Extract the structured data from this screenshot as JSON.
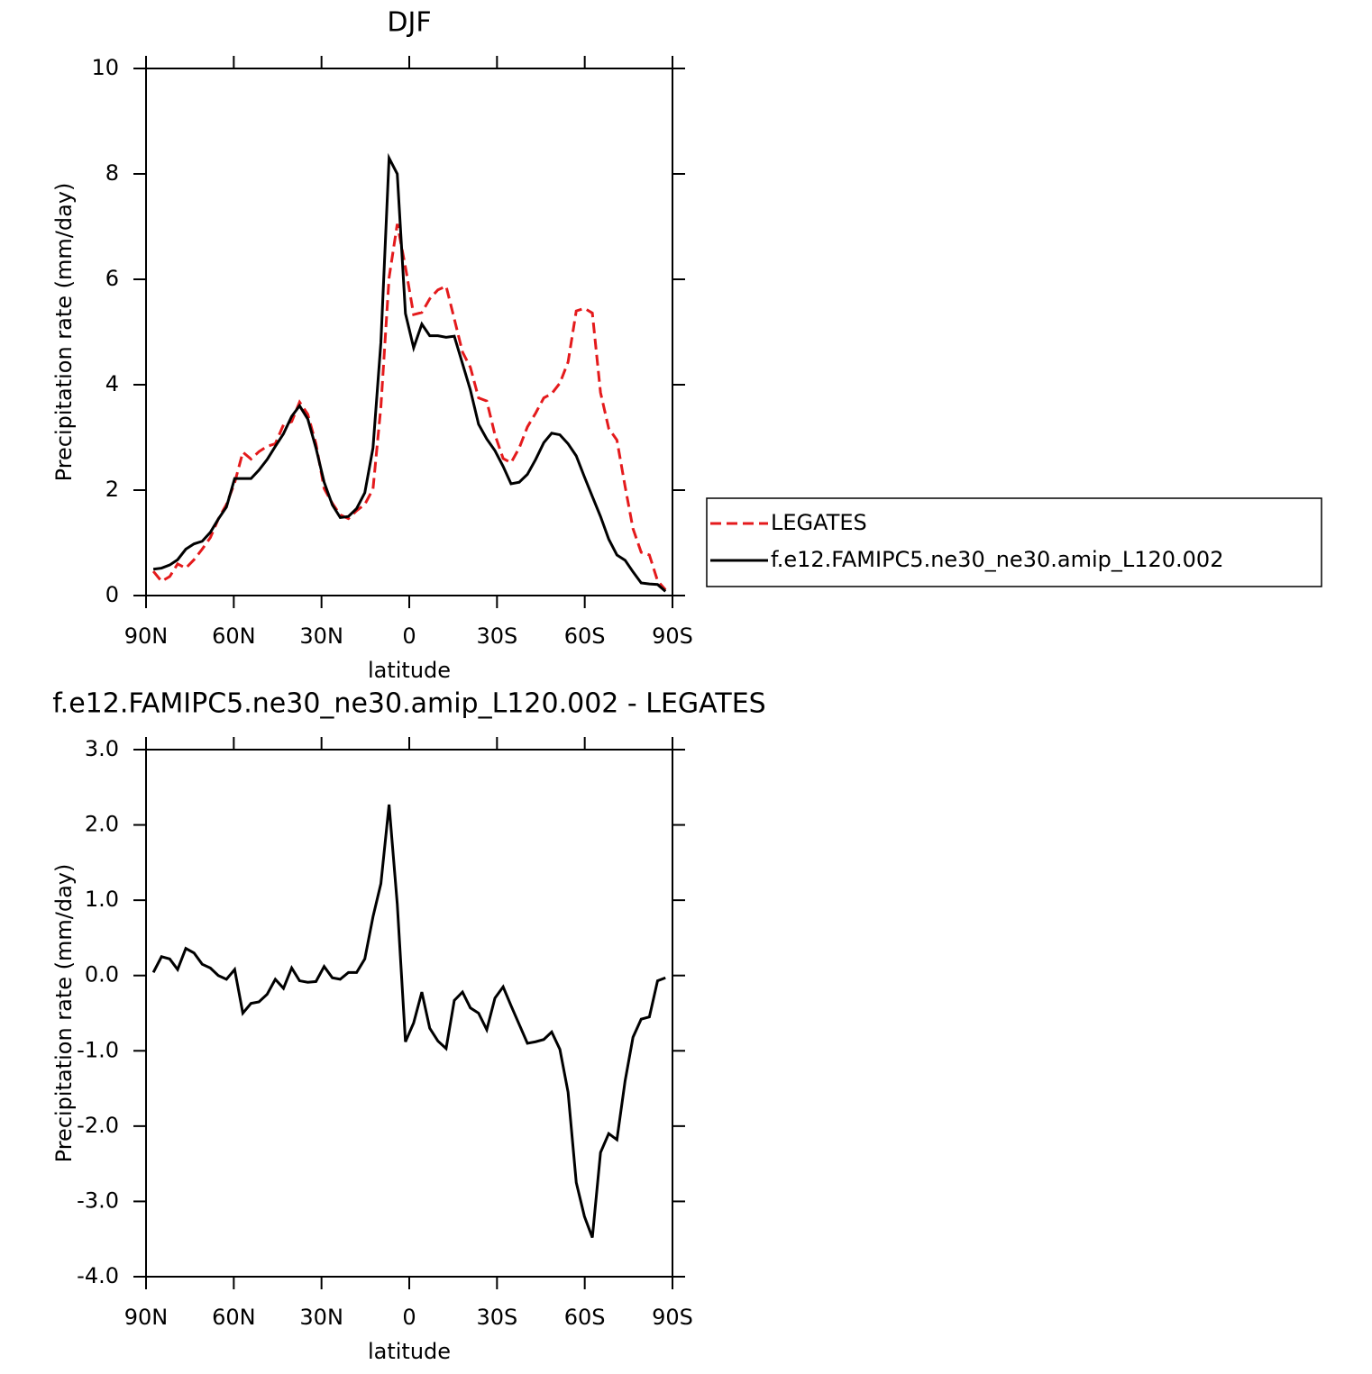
{
  "chart_data": [
    {
      "type": "line",
      "title": "DJF",
      "x_label": "latitude",
      "y_label": "Precipitation rate (mm/day)",
      "x": [
        87.5,
        84.7,
        81.9,
        79.2,
        76.4,
        73.6,
        70.8,
        68.0,
        65.3,
        62.5,
        59.7,
        56.9,
        54.1,
        51.4,
        48.6,
        45.8,
        43.0,
        40.2,
        37.5,
        34.7,
        31.9,
        29.1,
        26.3,
        23.6,
        20.8,
        18.0,
        15.2,
        12.4,
        9.7,
        6.9,
        4.1,
        1.3,
        -1.5,
        -4.3,
        -7.0,
        -9.8,
        -12.6,
        -15.4,
        -18.2,
        -20.9,
        -23.7,
        -26.5,
        -29.3,
        -32.1,
        -34.8,
        -37.6,
        -40.4,
        -43.2,
        -46.0,
        -48.7,
        -51.5,
        -54.3,
        -57.1,
        -59.9,
        -62.6,
        -65.4,
        -68.2,
        -71.0,
        -73.8,
        -76.5,
        -79.3,
        -82.1,
        -84.9,
        -87.6
      ],
      "series": [
        {
          "name": "LEGATES",
          "color": "#e41a1c",
          "dashed": true,
          "values": [
            0.46,
            0.27,
            0.36,
            0.6,
            0.52,
            0.68,
            0.88,
            1.1,
            1.45,
            1.73,
            2.14,
            2.72,
            2.59,
            2.73,
            2.83,
            2.88,
            3.24,
            3.3,
            3.67,
            3.44,
            2.88,
            2.03,
            1.75,
            1.53,
            1.46,
            1.61,
            1.73,
            2.02,
            3.58,
            6.03,
            7.05,
            6.23,
            5.33,
            5.37,
            5.63,
            5.8,
            5.87,
            5.25,
            4.62,
            4.33,
            3.75,
            3.69,
            3.05,
            2.6,
            2.52,
            2.8,
            3.2,
            3.46,
            3.75,
            3.83,
            4.03,
            4.43,
            5.4,
            5.45,
            5.36,
            3.85,
            3.17,
            2.95,
            2.07,
            1.27,
            0.82,
            0.77,
            0.28,
            0.11
          ]
        },
        {
          "name": "f.e12.FAMIPC5.ne30_ne30.amip_L120.002",
          "color": "#000000",
          "dashed": false,
          "values": [
            0.5,
            0.52,
            0.58,
            0.68,
            0.88,
            0.98,
            1.03,
            1.2,
            1.45,
            1.68,
            2.22,
            2.22,
            2.22,
            2.38,
            2.58,
            2.83,
            3.07,
            3.4,
            3.6,
            3.35,
            2.8,
            2.15,
            1.72,
            1.48,
            1.5,
            1.65,
            1.95,
            2.8,
            4.8,
            8.3,
            8.0,
            5.35,
            4.7,
            5.15,
            4.93,
            4.93,
            4.9,
            4.92,
            4.4,
            3.9,
            3.25,
            2.97,
            2.75,
            2.45,
            2.12,
            2.15,
            2.3,
            2.58,
            2.9,
            3.08,
            3.05,
            2.88,
            2.65,
            2.25,
            1.88,
            1.5,
            1.07,
            0.77,
            0.67,
            0.45,
            0.24,
            0.22,
            0.21,
            0.08
          ]
        }
      ],
      "xlim": [
        90,
        -90
      ],
      "xticks": [
        {
          "value": 90,
          "label": "90N"
        },
        {
          "value": 60,
          "label": "60N"
        },
        {
          "value": 30,
          "label": "30N"
        },
        0,
        {
          "value": -30,
          "label": "30S"
        },
        {
          "value": -60,
          "label": "60S"
        },
        {
          "value": -90,
          "label": "90S"
        }
      ],
      "ylim": [
        0,
        10
      ],
      "yticks": [
        0,
        2,
        4,
        6,
        8,
        10
      ],
      "legend": "right"
    },
    {
      "type": "line",
      "title": "f.e12.FAMIPC5.ne30_ne30.amip_L120.002 - LEGATES",
      "x_label": "latitude",
      "y_label": "Precipitation rate (mm/day)",
      "x": [
        87.5,
        84.7,
        81.9,
        79.2,
        76.4,
        73.6,
        70.8,
        68.0,
        65.3,
        62.5,
        59.7,
        56.9,
        54.1,
        51.4,
        48.6,
        45.8,
        43.0,
        40.2,
        37.5,
        34.7,
        31.9,
        29.1,
        26.3,
        23.6,
        20.8,
        18.0,
        15.2,
        12.4,
        9.7,
        6.9,
        4.1,
        1.3,
        -1.5,
        -4.3,
        -7.0,
        -9.8,
        -12.6,
        -15.4,
        -18.2,
        -20.9,
        -23.7,
        -26.5,
        -29.3,
        -32.1,
        -34.8,
        -37.6,
        -40.4,
        -43.2,
        -46.0,
        -48.7,
        -51.5,
        -54.3,
        -57.1,
        -59.9,
        -62.6,
        -65.4,
        -68.2,
        -71.0,
        -73.8,
        -76.5,
        -79.3,
        -82.1,
        -84.9,
        -87.6
      ],
      "series": [
        {
          "color": "#000000",
          "dashed": false,
          "values": [
            0.04,
            0.25,
            0.22,
            0.08,
            0.36,
            0.3,
            0.15,
            0.1,
            0.0,
            -0.05,
            0.08,
            -0.5,
            -0.37,
            -0.35,
            -0.25,
            -0.05,
            -0.17,
            0.1,
            -0.07,
            -0.09,
            -0.08,
            0.12,
            -0.03,
            -0.05,
            0.04,
            0.04,
            0.22,
            0.78,
            1.22,
            2.27,
            0.95,
            -0.88,
            -0.63,
            -0.22,
            -0.7,
            -0.87,
            -0.97,
            -0.33,
            -0.22,
            -0.43,
            -0.5,
            -0.72,
            -0.3,
            -0.15,
            -0.4,
            -0.65,
            -0.9,
            -0.88,
            -0.85,
            -0.75,
            -0.98,
            -1.55,
            -2.75,
            -3.2,
            -3.48,
            -2.35,
            -2.1,
            -2.18,
            -1.4,
            -0.82,
            -0.58,
            -0.55,
            -0.07,
            -0.03
          ]
        }
      ],
      "xlim": [
        90,
        -90
      ],
      "xticks": [
        {
          "value": 90,
          "label": "90N"
        },
        {
          "value": 60,
          "label": "60N"
        },
        {
          "value": 30,
          "label": "30N"
        },
        0,
        {
          "value": -30,
          "label": "30S"
        },
        {
          "value": -60,
          "label": "60S"
        },
        {
          "value": -90,
          "label": "90S"
        }
      ],
      "ylim": [
        -4,
        3
      ],
      "yticks": [
        {
          "value": 3,
          "label": "3.0"
        },
        {
          "value": 2,
          "label": "2.0"
        },
        {
          "value": 1,
          "label": "1.0"
        },
        {
          "value": 0,
          "label": "0.0"
        },
        {
          "value": -1,
          "label": "-1.0"
        },
        {
          "value": -2,
          "label": "-2.0"
        },
        {
          "value": -3,
          "label": "-3.0"
        },
        {
          "value": -4,
          "label": "-4.0"
        }
      ]
    }
  ]
}
